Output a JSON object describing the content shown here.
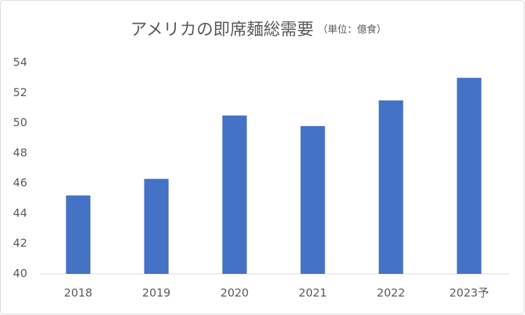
{
  "chart_data": {
    "type": "bar",
    "title": "アメリカの即席麺総需要",
    "subtitle": "（単位：億食）",
    "categories": [
      "2018",
      "2019",
      "2020",
      "2021",
      "2022",
      "2023予"
    ],
    "values": [
      45.2,
      46.3,
      50.5,
      49.8,
      51.5,
      53.0
    ],
    "color": "#4472c4",
    "ylim": [
      40,
      54
    ],
    "yticks": [
      40,
      42,
      44,
      46,
      48,
      50,
      52,
      54
    ],
    "grid": false
  }
}
